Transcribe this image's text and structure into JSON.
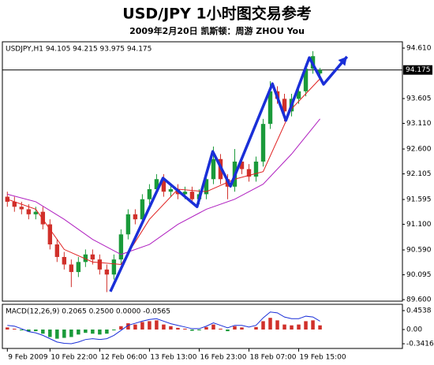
{
  "chart_data": {
    "type": "candlestick",
    "title": "USD/JPY  1小时图交易参考",
    "subtitle": "2009年2月20日   凯斯顿：周游 ZHOU You",
    "header_text": "USDJPY,H1  94.105 94.215 93.975 94.175",
    "up_color": "#1a9a3a",
    "down_color": "#d0302a",
    "open": [
      91.65,
      91.55,
      91.45,
      91.4,
      91.3,
      91.35,
      91.1,
      90.7,
      90.45,
      90.3,
      90.15,
      90.35,
      90.5,
      90.4,
      90.2,
      90.1,
      90.4,
      90.9,
      91.3,
      91.2,
      91.6,
      91.8,
      92.0,
      91.75,
      91.8,
      91.7,
      91.75,
      91.6,
      91.7,
      92.0,
      92.4,
      92.0,
      91.85,
      92.35,
      92.2,
      92.05,
      92.35,
      93.1,
      93.75,
      93.6,
      93.35,
      93.6,
      93.75,
      94.2,
      94.105
    ],
    "high": [
      91.75,
      91.65,
      91.55,
      91.5,
      91.45,
      91.45,
      91.2,
      90.8,
      90.55,
      90.4,
      90.45,
      90.6,
      90.6,
      90.5,
      90.3,
      90.5,
      91.0,
      91.4,
      91.4,
      91.7,
      91.9,
      92.1,
      92.1,
      91.9,
      91.9,
      91.85,
      91.85,
      91.8,
      92.1,
      92.65,
      92.5,
      92.1,
      92.6,
      92.45,
      92.3,
      92.45,
      93.2,
      93.95,
      93.85,
      93.7,
      93.7,
      93.85,
      94.3,
      94.55,
      94.215
    ],
    "low": [
      91.45,
      91.35,
      91.3,
      91.2,
      91.2,
      91.0,
      90.6,
      90.35,
      90.2,
      89.85,
      90.05,
      90.25,
      90.3,
      90.1,
      89.75,
      90.0,
      90.3,
      90.8,
      91.1,
      91.1,
      91.5,
      91.7,
      91.65,
      91.65,
      91.6,
      91.6,
      91.5,
      91.5,
      91.6,
      91.9,
      91.9,
      91.6,
      91.75,
      92.1,
      91.95,
      91.95,
      92.25,
      93.0,
      93.5,
      93.15,
      93.25,
      93.5,
      93.65,
      94.1,
      93.975
    ],
    "close": [
      91.55,
      91.45,
      91.4,
      91.3,
      91.35,
      91.1,
      90.7,
      90.45,
      90.3,
      90.15,
      90.35,
      90.5,
      90.4,
      90.2,
      90.1,
      90.4,
      90.9,
      91.3,
      91.2,
      91.6,
      91.8,
      92.0,
      91.75,
      91.8,
      91.7,
      91.75,
      91.6,
      91.7,
      92.0,
      92.4,
      92.0,
      91.85,
      92.35,
      92.2,
      92.05,
      92.35,
      93.1,
      93.75,
      93.6,
      93.35,
      93.6,
      93.75,
      94.2,
      94.45,
      94.175
    ],
    "moving_averages": [
      {
        "color": "#e02020",
        "x": [
          0,
          4,
          8,
          12,
          16,
          20,
          24,
          28,
          32,
          36,
          40,
          44
        ],
        "values": [
          91.6,
          91.4,
          90.6,
          90.35,
          90.3,
          91.2,
          91.8,
          91.75,
          92.0,
          92.15,
          93.4,
          94.0
        ]
      },
      {
        "color": "#b020c0",
        "x": [
          0,
          4,
          8,
          12,
          16,
          20,
          24,
          28,
          32,
          36,
          40,
          44
        ],
        "values": [
          91.7,
          91.55,
          91.2,
          90.8,
          90.5,
          90.7,
          91.1,
          91.4,
          91.6,
          91.9,
          92.5,
          93.2
        ]
      }
    ],
    "trend_path": {
      "color": "#1a2fd8",
      "x": [
        14.5,
        21.9,
        26.7,
        28.9,
        31.4,
        37.3,
        39.2,
        42.5,
        44.5,
        47.8
      ],
      "values": [
        89.76,
        92.02,
        91.45,
        92.55,
        91.86,
        93.9,
        93.17,
        94.42,
        93.89,
        94.44
      ]
    },
    "last_price": 94.175,
    "xlim": [
      -0.7,
      55.6
    ],
    "ylim": [
      89.57,
      94.736
    ],
    "yticks": [
      {
        "value": 94.61,
        "label": "94.610"
      },
      93.605,
      {
        "value": 93.11,
        "label": "93.110"
      },
      {
        "value": 92.6,
        "label": "92.600"
      },
      92.105,
      91.595,
      {
        "value": 91.1,
        "label": "91.100"
      },
      {
        "value": 90.59,
        "label": "90.590"
      },
      90.095,
      {
        "value": 89.6,
        "label": "89.600"
      }
    ],
    "xticks": [
      {
        "value": 0,
        "label": "9 Feb 2009"
      },
      {
        "value": 6,
        "label": "10 Feb 22:00"
      },
      {
        "value": 13,
        "label": "12 Feb 06:00"
      },
      {
        "value": 20,
        "label": "13 Feb 13:00"
      },
      {
        "value": 27,
        "label": "16 Feb 23:00"
      },
      {
        "value": 34,
        "label": "18 Feb 07:00"
      },
      {
        "value": 41,
        "label": "19 Feb 15:00"
      }
    ],
    "macd": {
      "label": "MACD(12,26,9) 0.2065 0.2500 0.0000 -0.0565",
      "ylim": [
        -0.454,
        0.605
      ],
      "yticks": [
        0.4538,
        {
          "value": 0,
          "label": "0.00"
        },
        -0.3416
      ],
      "histogram": [
        0.05,
        0.02,
        -0.02,
        -0.05,
        -0.04,
        -0.1,
        -0.18,
        -0.22,
        -0.2,
        -0.18,
        -0.12,
        -0.08,
        -0.1,
        -0.12,
        -0.1,
        -0.02,
        0.08,
        0.15,
        0.12,
        0.18,
        0.2,
        0.22,
        0.12,
        0.08,
        0.04,
        0.02,
        -0.03,
        -0.02,
        0.06,
        0.12,
        0.02,
        -0.04,
        0.08,
        0.05,
        0.0,
        0.06,
        0.2,
        0.28,
        0.22,
        0.12,
        0.1,
        0.12,
        0.2,
        0.22,
        0.1
      ],
      "line": [
        0.1,
        0.08,
        0.02,
        -0.05,
        -0.08,
        -0.14,
        -0.22,
        -0.3,
        -0.33,
        -0.34,
        -0.3,
        -0.24,
        -0.22,
        -0.24,
        -0.22,
        -0.14,
        -0.02,
        0.1,
        0.15,
        0.2,
        0.24,
        0.26,
        0.2,
        0.14,
        0.1,
        0.06,
        0.02,
        0.02,
        0.08,
        0.16,
        0.1,
        0.04,
        0.1,
        0.1,
        0.06,
        0.1,
        0.28,
        0.42,
        0.4,
        0.3,
        0.26,
        0.26,
        0.32,
        0.3,
        0.2
      ],
      "line_color": "#1a2fd8"
    }
  }
}
